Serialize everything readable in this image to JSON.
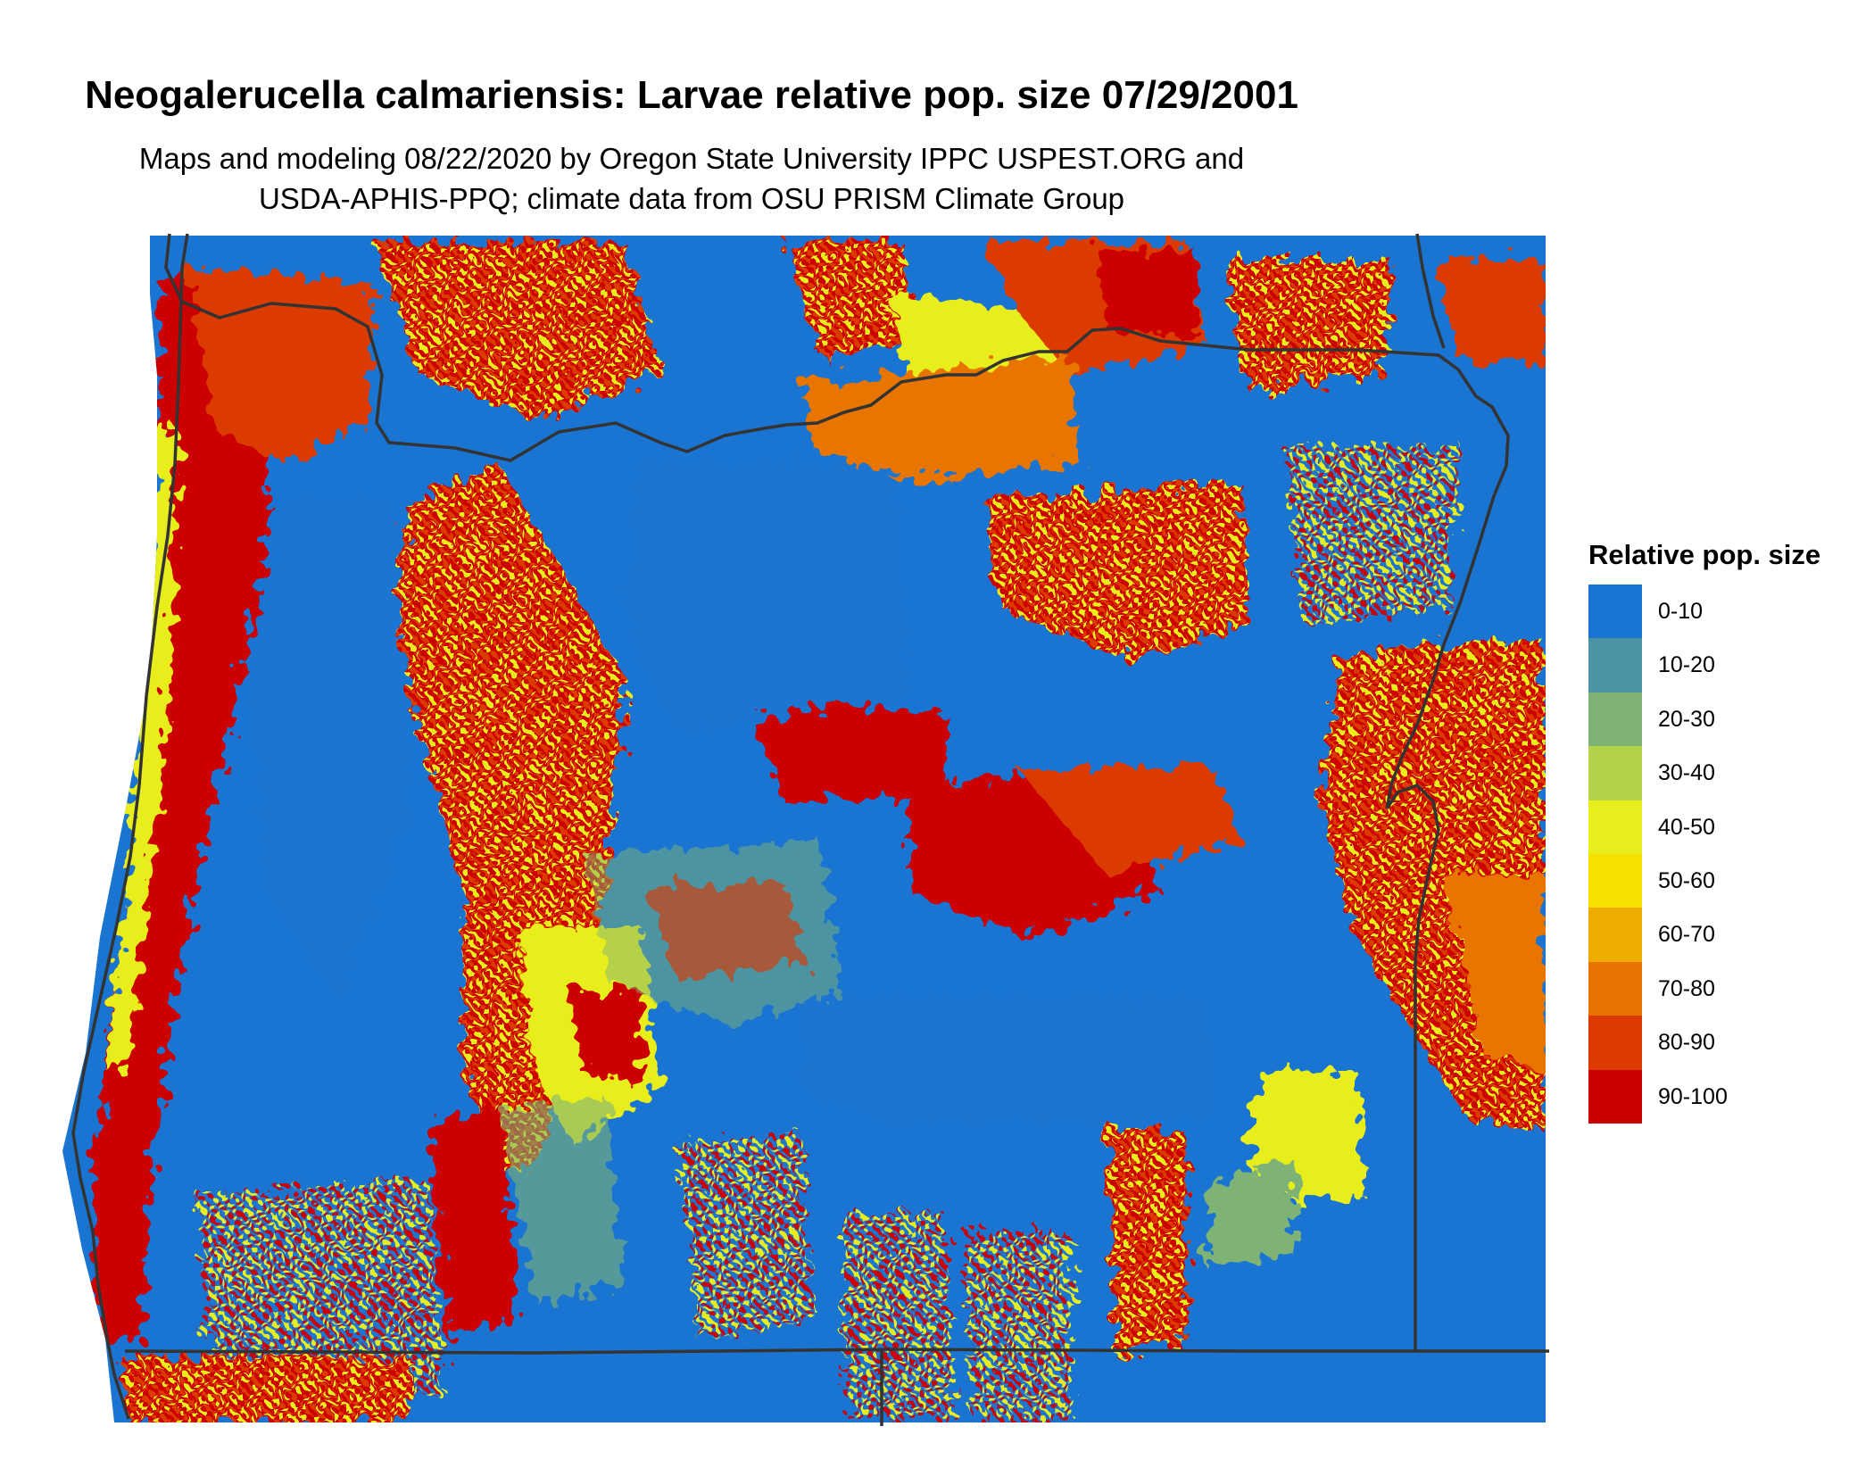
{
  "title": "Neogalerucella calmariensis: Larvae relative pop. size 07/29/2001",
  "subtitle_lines": [
    "Maps and modeling 08/22/2020 by Oregon State University IPPC USPEST.ORG and",
    "USDA-APHIS-PPQ; climate data from OSU PRISM Climate Group"
  ],
  "legend": {
    "title": "Relative pop. size",
    "classes": [
      {
        "label": "0-10",
        "color": "#1a74d1"
      },
      {
        "label": "10-20",
        "color": "#4a94a6"
      },
      {
        "label": "20-30",
        "color": "#7fb375"
      },
      {
        "label": "30-40",
        "color": "#b3d44a"
      },
      {
        "label": "40-50",
        "color": "#e8ee1e"
      },
      {
        "label": "50-60",
        "color": "#f7e000"
      },
      {
        "label": "60-70",
        "color": "#f0ab00"
      },
      {
        "label": "70-80",
        "color": "#e77400"
      },
      {
        "label": "80-90",
        "color": "#dc3a00"
      },
      {
        "label": "90-100",
        "color": "#cc0000"
      }
    ]
  },
  "map": {
    "background_class_color": "#1a74d1",
    "boundary_color": "#333333"
  }
}
